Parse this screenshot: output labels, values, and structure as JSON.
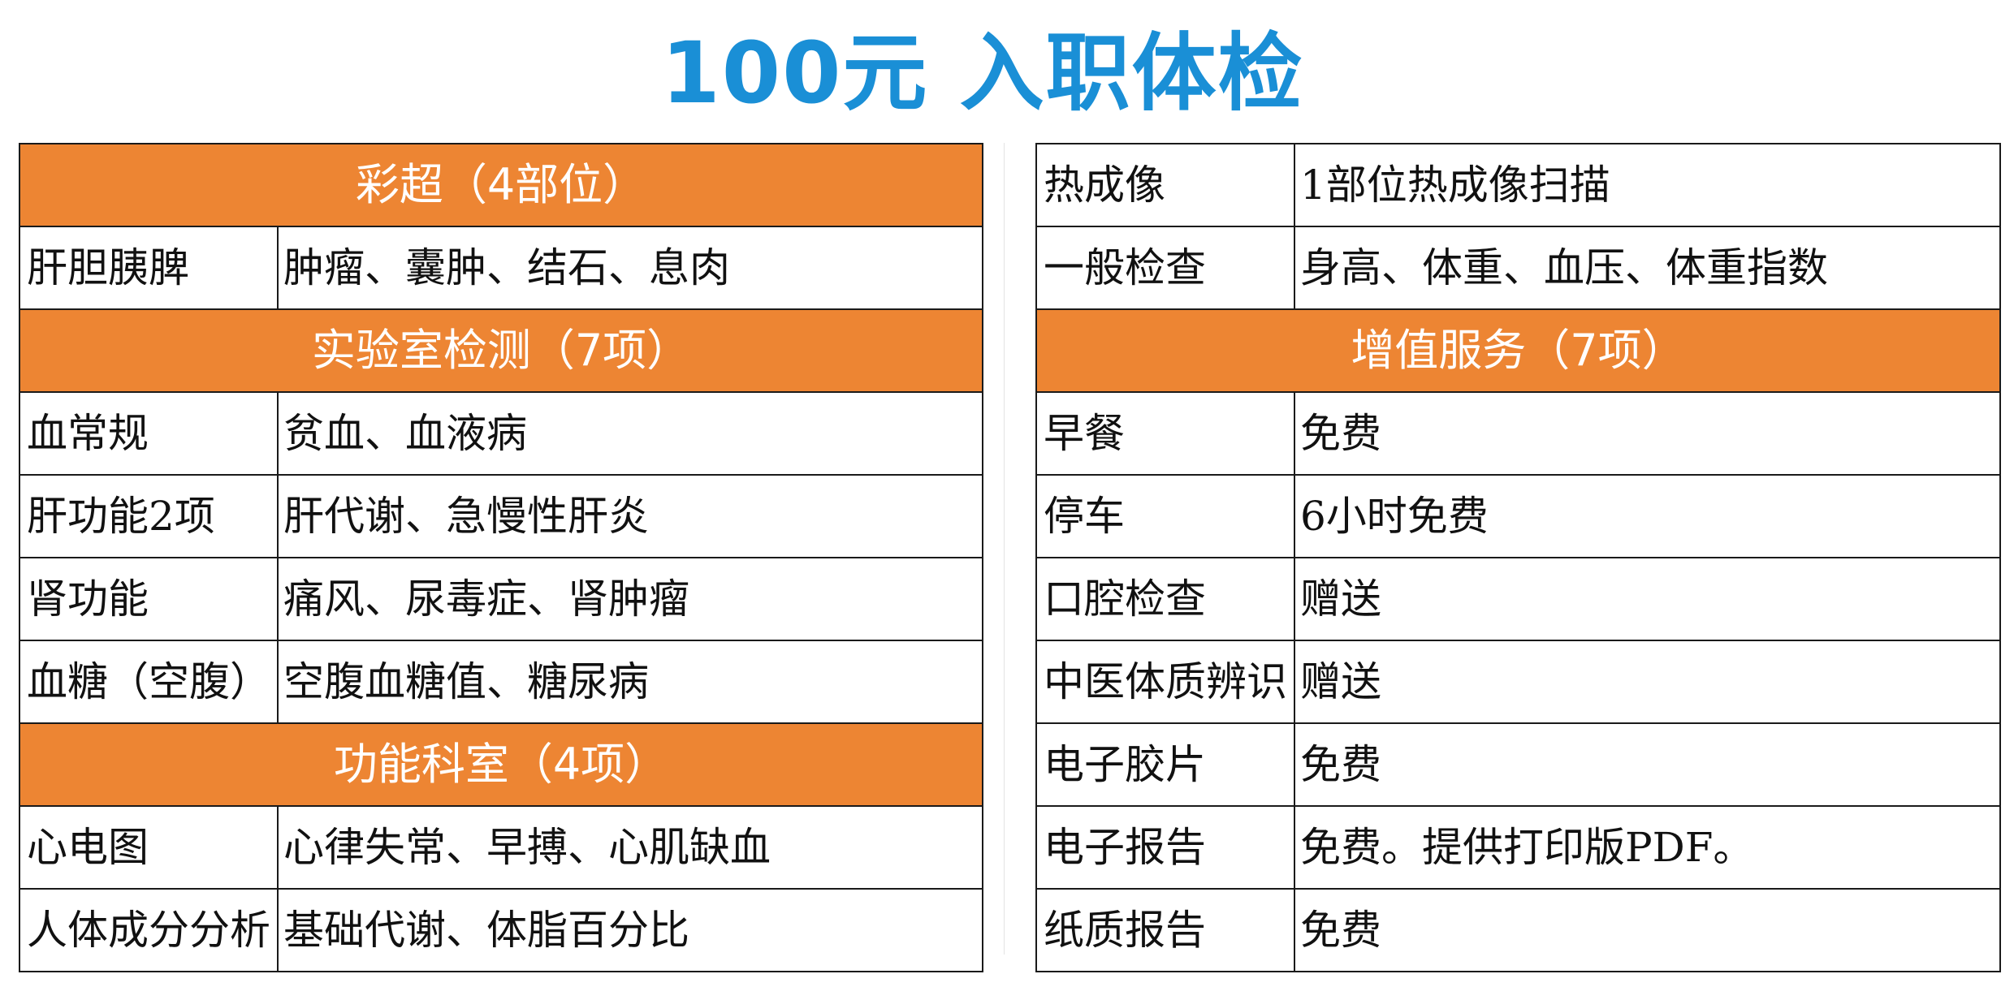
{
  "title": "100元 入职体检",
  "left_table": {
    "sections": [
      {
        "header": "彩超（4部位）",
        "rows": [
          {
            "item": "肝胆胰脾",
            "desc": "肿瘤、囊肿、结石、息肉"
          }
        ]
      },
      {
        "header": "实验室检测（7项）",
        "rows": [
          {
            "item": "血常规",
            "desc": "贫血、血液病"
          },
          {
            "item": "肝功能2项",
            "desc": "肝代谢、急慢性肝炎"
          },
          {
            "item": "肾功能",
            "desc": "痛风、尿毒症、肾肿瘤"
          },
          {
            "item": "血糖（空腹）",
            "desc": "空腹血糖值、糖尿病"
          }
        ]
      },
      {
        "header": "功能科室（4项）",
        "rows": [
          {
            "item": "心电图",
            "desc": "心律失常、早搏、心肌缺血"
          },
          {
            "item": "人体成分分析",
            "desc": "基础代谢、体脂百分比"
          }
        ]
      }
    ]
  },
  "right_table": {
    "top_rows": [
      {
        "item": "热成像",
        "desc": "1部位热成像扫描"
      },
      {
        "item": "一般检查",
        "desc": "身高、体重、血压、体重指数"
      }
    ],
    "section": {
      "header": "增值服务（7项）",
      "rows": [
        {
          "item": "早餐",
          "desc": "免费"
        },
        {
          "item": "停车",
          "desc": "6小时免费"
        },
        {
          "item": "口腔检查",
          "desc": "赠送"
        },
        {
          "item": "中医体质辨识",
          "desc": "赠送"
        },
        {
          "item": "电子胶片",
          "desc": "免费"
        },
        {
          "item": "电子报告",
          "desc": "免费。提供打印版PDF。"
        },
        {
          "item": "纸质报告",
          "desc": "免费"
        }
      ]
    }
  },
  "colors": {
    "title": "#1a8fd6",
    "section_header_bg": "#ed8533",
    "section_header_text": "#ffffff",
    "grid": "#1a1a1a"
  }
}
